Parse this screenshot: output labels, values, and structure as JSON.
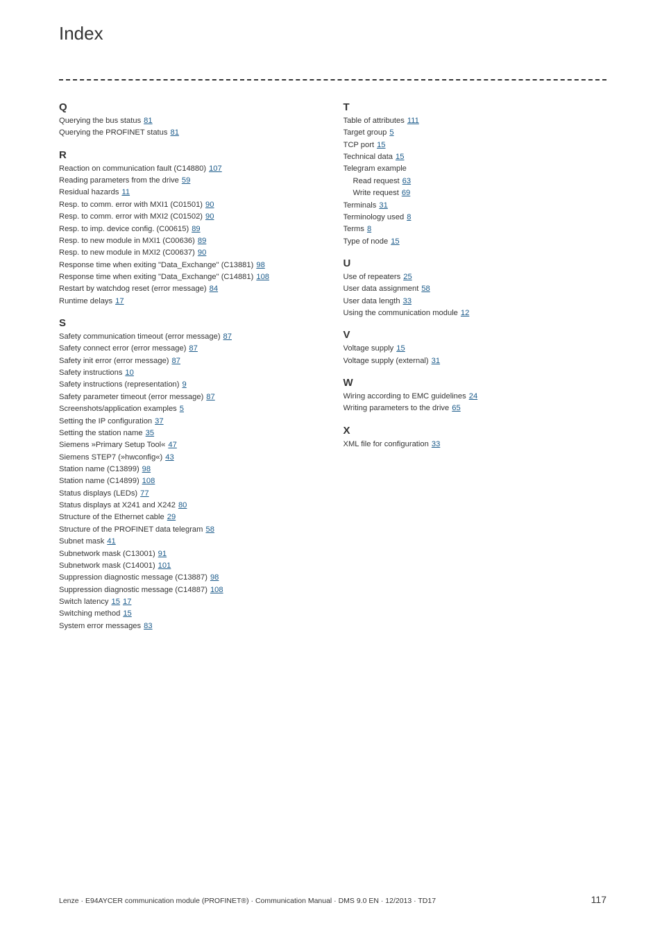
{
  "title": "Index",
  "link_color": "#1a5a8a",
  "text_color": "#333333",
  "rule_color": "#333333",
  "background_color": "#ffffff",
  "left": [
    {
      "letter": "Q",
      "entries": [
        {
          "t": "Querying the bus status",
          "p": [
            "81"
          ]
        },
        {
          "t": "Querying the PROFINET status",
          "p": [
            "81"
          ]
        }
      ]
    },
    {
      "letter": "R",
      "entries": [
        {
          "t": "Reaction on communication fault (C14880)",
          "p": [
            "107"
          ]
        },
        {
          "t": "Reading parameters from the drive",
          "p": [
            "59"
          ]
        },
        {
          "t": "Residual hazards",
          "p": [
            "11"
          ]
        },
        {
          "t": "Resp. to comm. error with MXI1 (C01501)",
          "p": [
            "90"
          ]
        },
        {
          "t": "Resp. to comm. error with MXI2 (C01502)",
          "p": [
            "90"
          ]
        },
        {
          "t": "Resp. to imp. device config. (C00615)",
          "p": [
            "89"
          ]
        },
        {
          "t": "Resp. to new module in MXI1 (C00636)",
          "p": [
            "89"
          ]
        },
        {
          "t": "Resp. to new module in MXI2 (C00637)",
          "p": [
            "90"
          ]
        },
        {
          "t": "Response time when exiting \"Data_Exchange\" (C13881)",
          "p": [
            "98"
          ]
        },
        {
          "t": "Response time when exiting \"Data_Exchange\" (C14881)",
          "p": [
            "108"
          ]
        },
        {
          "t": "Restart by watchdog reset (error message)",
          "p": [
            "84"
          ]
        },
        {
          "t": "Runtime delays",
          "p": [
            "17"
          ]
        }
      ]
    },
    {
      "letter": "S",
      "entries": [
        {
          "t": "Safety communication timeout (error message)",
          "p": [
            "87"
          ]
        },
        {
          "t": "Safety connect error (error message)",
          "p": [
            "87"
          ]
        },
        {
          "t": "Safety init error (error message)",
          "p": [
            "87"
          ]
        },
        {
          "t": "Safety instructions",
          "p": [
            "10"
          ]
        },
        {
          "t": "Safety instructions (representation)",
          "p": [
            "9"
          ]
        },
        {
          "t": "Safety parameter timeout (error message)",
          "p": [
            "87"
          ]
        },
        {
          "t": "Screenshots/application examples",
          "p": [
            "5"
          ]
        },
        {
          "t": "Setting the IP configuration",
          "p": [
            "37"
          ]
        },
        {
          "t": "Setting the station name",
          "p": [
            "35"
          ]
        },
        {
          "t": "Siemens »Primary Setup Tool«",
          "p": [
            "47"
          ]
        },
        {
          "t": "Siemens STEP7 (»hwconfig«)",
          "p": [
            "43"
          ]
        },
        {
          "t": "Station name (C13899)",
          "p": [
            "98"
          ]
        },
        {
          "t": "Station name (C14899)",
          "p": [
            "108"
          ]
        },
        {
          "t": "Status displays (LEDs)",
          "p": [
            "77"
          ]
        },
        {
          "t": "Status displays at X241 and X242",
          "p": [
            "80"
          ]
        },
        {
          "t": "Structure of the Ethernet cable",
          "p": [
            "29"
          ]
        },
        {
          "t": "Structure of the PROFINET data telegram",
          "p": [
            "58"
          ]
        },
        {
          "t": "Subnet mask",
          "p": [
            "41"
          ]
        },
        {
          "t": "Subnetwork mask (C13001)",
          "p": [
            "91"
          ]
        },
        {
          "t": "Subnetwork mask (C14001)",
          "p": [
            "101"
          ]
        },
        {
          "t": "Suppression diagnostic message (C13887)",
          "p": [
            "98"
          ]
        },
        {
          "t": "Suppression diagnostic message (C14887)",
          "p": [
            "108"
          ]
        },
        {
          "t": "Switch latency",
          "p": [
            "15",
            "17"
          ]
        },
        {
          "t": "Switching method",
          "p": [
            "15"
          ]
        },
        {
          "t": "System error messages",
          "p": [
            "83"
          ]
        }
      ]
    }
  ],
  "right": [
    {
      "letter": "T",
      "entries": [
        {
          "t": "Table of attributes",
          "p": [
            "111"
          ]
        },
        {
          "t": "Target group",
          "p": [
            "5"
          ]
        },
        {
          "t": "TCP port",
          "p": [
            "15"
          ]
        },
        {
          "t": "Technical data",
          "p": [
            "15"
          ]
        },
        {
          "t": "Telegram example",
          "p": []
        },
        {
          "t": "Read request",
          "p": [
            "63"
          ],
          "sub": true
        },
        {
          "t": "Write request",
          "p": [
            "69"
          ],
          "sub": true
        },
        {
          "t": "Terminals",
          "p": [
            "31"
          ]
        },
        {
          "t": "Terminology used",
          "p": [
            "8"
          ]
        },
        {
          "t": "Terms",
          "p": [
            "8"
          ]
        },
        {
          "t": "Type of node",
          "p": [
            "15"
          ]
        }
      ]
    },
    {
      "letter": "U",
      "entries": [
        {
          "t": "Use of repeaters",
          "p": [
            "25"
          ]
        },
        {
          "t": "User data assignment",
          "p": [
            "58"
          ]
        },
        {
          "t": "User data length",
          "p": [
            "33"
          ]
        },
        {
          "t": "Using the communication module",
          "p": [
            "12"
          ]
        }
      ]
    },
    {
      "letter": "V",
      "entries": [
        {
          "t": "Voltage supply",
          "p": [
            "15"
          ]
        },
        {
          "t": "Voltage supply (external)",
          "p": [
            "31"
          ]
        }
      ]
    },
    {
      "letter": "W",
      "entries": [
        {
          "t": "Wiring according to EMC guidelines",
          "p": [
            "24"
          ]
        },
        {
          "t": "Writing parameters to the drive",
          "p": [
            "65"
          ]
        }
      ]
    },
    {
      "letter": "X",
      "entries": [
        {
          "t": "XML file for configuration",
          "p": [
            "33"
          ]
        }
      ]
    }
  ],
  "footer": {
    "text": "Lenze · E94AYCER communication module (PROFINET®) · Communication Manual · DMS 9.0 EN · 12/2013 · TD17",
    "page": "117"
  }
}
